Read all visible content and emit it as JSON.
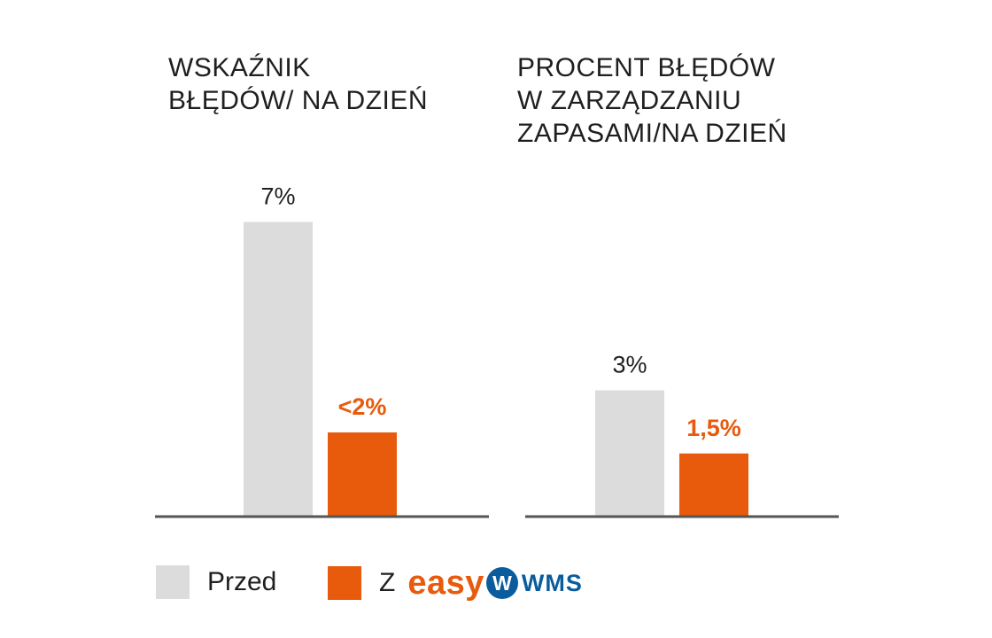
{
  "colors": {
    "before": "#dcdcdc",
    "after": "#e85a0c",
    "axis": "#555555",
    "label_dark": "#1f1f1f",
    "brand_blue": "#0a5c9c"
  },
  "chart_data": [
    {
      "type": "bar",
      "title": "WSKAŹNIK\nBŁĘDÓW/ NA DZIEŃ",
      "categories": [
        "Przed",
        "Z easyWMS"
      ],
      "values": [
        7,
        2
      ],
      "data_labels": [
        "7%",
        "<2%"
      ],
      "ylim": [
        0,
        8.5
      ],
      "xlabel": "",
      "ylabel": "",
      "grid": false
    },
    {
      "type": "bar",
      "title": "PROCENT BŁĘDÓW\nW ZARZĄDZANIU\nZAPASAMI/NA DZIEŃ",
      "categories": [
        "Przed",
        "Z easyWMS"
      ],
      "values": [
        3,
        1.5
      ],
      "data_labels": [
        "3%",
        "1,5%"
      ],
      "ylim": [
        0,
        8.5
      ],
      "xlabel": "",
      "ylabel": "",
      "grid": false
    }
  ],
  "legend": {
    "before_label": "Przed",
    "after_label": "Z",
    "brand_easy": "easy",
    "brand_wms": "WMS",
    "brand_letter": "W"
  }
}
